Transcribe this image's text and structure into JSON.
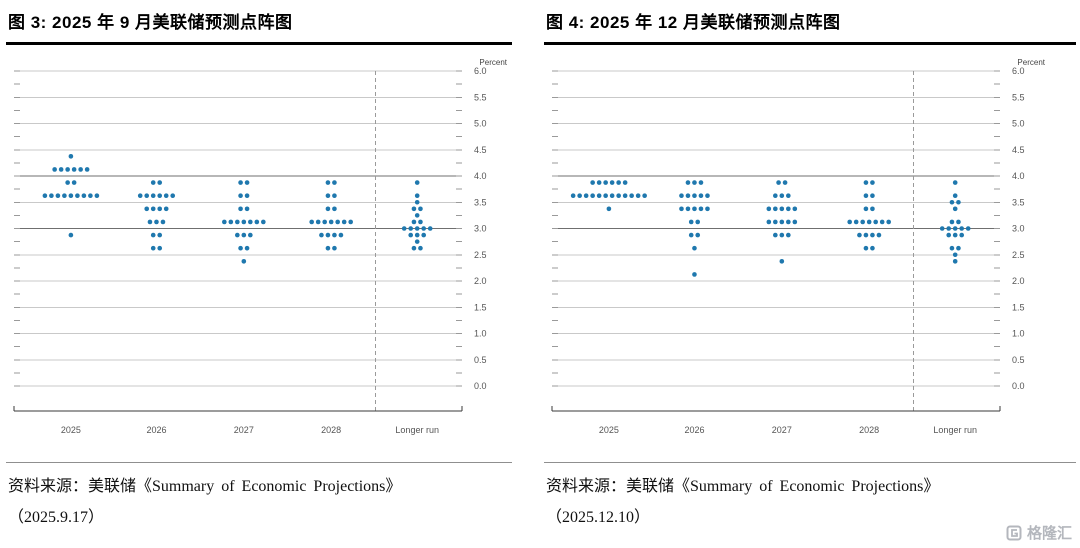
{
  "page": {
    "watermark": "格隆汇"
  },
  "panels": [
    {
      "title": "图 3:  2025 年 9 月美联储预测点阵图",
      "source_prefix": "资料来源：美联储《Summary of Economic Projections》",
      "source_date": "（2025.9.17）"
    },
    {
      "title": "图 4:  2025 年 12 月美联储预测点阵图",
      "source_prefix": "资料来源：美联储《Summary of Economic Projections》",
      "source_date": "（2025.12.10）"
    }
  ],
  "colors": {
    "dot": "#1f78ae",
    "grid": "#c9c9c9",
    "grid_dark": "#6f6f6f",
    "axis": "#3a3a3a",
    "tick": "#9a9a9a",
    "label": "#555555",
    "dashed": "#9a9a9a"
  },
  "chart_data": [
    {
      "type": "scatter",
      "title": "2025 年 9 月美联储预测点阵图 (FOMC dot plot, 2025.9.17)",
      "ylabel": "Percent",
      "ylim": [
        0,
        6
      ],
      "ytick_labels": [
        "6.0",
        "5.5",
        "5.0",
        "4.5",
        "4.0",
        "3.5",
        "3.0",
        "2.5",
        "2.0",
        "1.5",
        "1.0",
        "0.5",
        "0.0"
      ],
      "dark_gridlines": [
        3,
        4
      ],
      "grid": true,
      "categories": [
        "2025",
        "2026",
        "2027",
        "2028",
        "Longer run"
      ],
      "dots": {
        "2025": [
          [
            4.375,
            1
          ],
          [
            4.125,
            6
          ],
          [
            3.875,
            2
          ],
          [
            3.625,
            9
          ],
          [
            2.875,
            1
          ]
        ],
        "2026": [
          [
            3.875,
            2
          ],
          [
            3.625,
            6
          ],
          [
            3.375,
            4
          ],
          [
            3.125,
            3
          ],
          [
            2.875,
            2
          ],
          [
            2.625,
            2
          ]
        ],
        "2027": [
          [
            3.875,
            2
          ],
          [
            3.625,
            2
          ],
          [
            3.375,
            2
          ],
          [
            3.125,
            7
          ],
          [
            2.875,
            3
          ],
          [
            2.625,
            2
          ],
          [
            2.375,
            1
          ]
        ],
        "2028": [
          [
            3.875,
            2
          ],
          [
            3.625,
            2
          ],
          [
            3.375,
            2
          ],
          [
            3.125,
            7
          ],
          [
            2.875,
            4
          ],
          [
            2.625,
            2
          ]
        ],
        "Longer run": [
          [
            3.875,
            1
          ],
          [
            3.625,
            1
          ],
          [
            3.5,
            1
          ],
          [
            3.375,
            2
          ],
          [
            3.25,
            1
          ],
          [
            3.125,
            2
          ],
          [
            3.0,
            5
          ],
          [
            2.875,
            3
          ],
          [
            2.75,
            1
          ],
          [
            2.625,
            2
          ]
        ]
      }
    },
    {
      "type": "scatter",
      "title": "2025 年 12 月美联储预测点阵图 (FOMC dot plot, 2025.12.10)",
      "ylabel": "Percent",
      "ylim": [
        0,
        6
      ],
      "ytick_labels": [
        "6.0",
        "5.5",
        "5.0",
        "4.5",
        "4.0",
        "3.5",
        "3.0",
        "2.5",
        "2.0",
        "1.5",
        "1.0",
        "0.5",
        "0.0"
      ],
      "dark_gridlines": [
        3,
        4
      ],
      "grid": true,
      "categories": [
        "2025",
        "2026",
        "2027",
        "2028",
        "Longer run"
      ],
      "dots": {
        "2025": [
          [
            3.875,
            6
          ],
          [
            3.625,
            12
          ],
          [
            3.375,
            1
          ]
        ],
        "2026": [
          [
            3.875,
            3
          ],
          [
            3.625,
            5
          ],
          [
            3.375,
            5
          ],
          [
            3.125,
            2
          ],
          [
            2.875,
            2
          ],
          [
            2.625,
            1
          ],
          [
            2.125,
            1
          ]
        ],
        "2027": [
          [
            3.875,
            2
          ],
          [
            3.625,
            3
          ],
          [
            3.375,
            5
          ],
          [
            3.125,
            5
          ],
          [
            2.875,
            3
          ],
          [
            2.375,
            1
          ]
        ],
        "2028": [
          [
            3.875,
            2
          ],
          [
            3.625,
            2
          ],
          [
            3.375,
            2
          ],
          [
            3.125,
            7
          ],
          [
            2.875,
            4
          ],
          [
            2.625,
            2
          ]
        ],
        "Longer run": [
          [
            3.875,
            1
          ],
          [
            3.625,
            1
          ],
          [
            3.5,
            2
          ],
          [
            3.375,
            1
          ],
          [
            3.125,
            2
          ],
          [
            3.0,
            5
          ],
          [
            2.875,
            3
          ],
          [
            2.625,
            2
          ],
          [
            2.5,
            1
          ],
          [
            2.375,
            1
          ]
        ]
      }
    }
  ]
}
